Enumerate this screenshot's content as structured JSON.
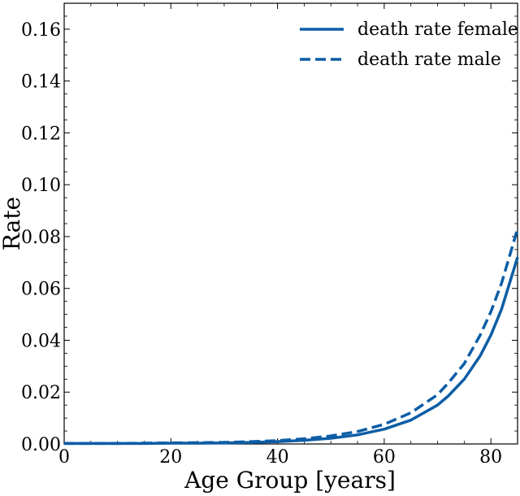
{
  "chart_data": {
    "type": "line",
    "title": "",
    "xlabel": "Age Group [years]",
    "ylabel": "Rate",
    "xlim": [
      0,
      85
    ],
    "ylim": [
      0,
      0.17
    ],
    "xticks": [
      0,
      20,
      40,
      60,
      80
    ],
    "yticks": [
      0.0,
      0.02,
      0.04,
      0.06,
      0.08,
      0.1,
      0.12,
      0.14,
      0.16
    ],
    "xtick_labels": [
      "0",
      "20",
      "40",
      "60",
      "80"
    ],
    "ytick_labels": [
      "0.00",
      "0.02",
      "0.04",
      "0.06",
      "0.08",
      "0.10",
      "0.12",
      "0.14",
      "0.16"
    ],
    "grid": false,
    "legend_position": "top-right",
    "x": [
      0,
      5,
      10,
      15,
      20,
      25,
      30,
      35,
      40,
      45,
      50,
      55,
      60,
      65,
      70,
      72,
      75,
      78,
      80,
      82,
      85
    ],
    "series": [
      {
        "name": "death rate female",
        "style": "solid",
        "color": "#0c5da5",
        "values": [
          0.0002,
          0.0002,
          0.0002,
          0.0002,
          0.0003,
          0.0003,
          0.0004,
          0.0006,
          0.0009,
          0.0014,
          0.0022,
          0.0035,
          0.0057,
          0.0092,
          0.015,
          0.0185,
          0.025,
          0.034,
          0.042,
          0.052,
          0.072
        ]
      },
      {
        "name": "death rate male",
        "style": "dashed",
        "color": "#0c5da5",
        "values": [
          0.0002,
          0.0002,
          0.0002,
          0.0003,
          0.0004,
          0.0005,
          0.0006,
          0.0009,
          0.0013,
          0.002,
          0.0031,
          0.0048,
          0.0076,
          0.012,
          0.019,
          0.0235,
          0.031,
          0.042,
          0.051,
          0.062,
          0.083
        ]
      }
    ]
  }
}
